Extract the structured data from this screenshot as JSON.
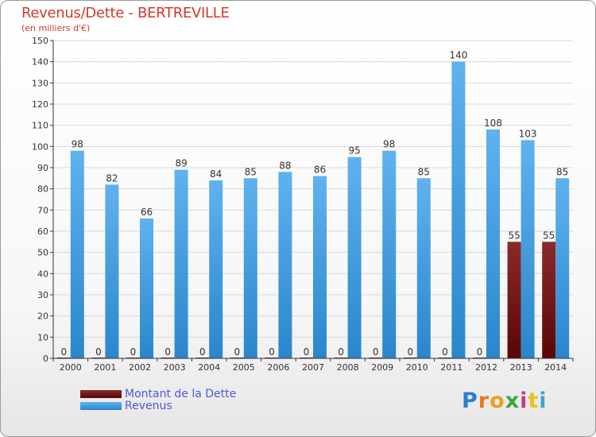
{
  "header": {
    "title": "Revenus/Dette - BERTREVILLE",
    "subtitle": "(en milliers d'€)"
  },
  "colors": {
    "dette": "#7a1010",
    "revenus": "#4aa3e6",
    "grid": "#d8d8d8",
    "title": "#d03a2c",
    "legend_text": "#4a5ad8"
  },
  "legend": {
    "dette_label": "Montant de la Dette",
    "revenus_label": "Revenus"
  },
  "logo": {
    "text": "Proxiti"
  },
  "chart_data": {
    "type": "bar",
    "title": "Revenus/Dette - BERTREVILLE",
    "subtitle": "(en milliers d'€)",
    "categories": [
      "2000",
      "2001",
      "2002",
      "2003",
      "2004",
      "2005",
      "2006",
      "2007",
      "2008",
      "2009",
      "2010",
      "2011",
      "2012",
      "2013",
      "2014"
    ],
    "series": [
      {
        "name": "Montant de la Dette",
        "values": [
          0,
          0,
          0,
          0,
          0,
          0,
          0,
          0,
          0,
          0,
          0,
          0,
          0,
          55,
          55
        ]
      },
      {
        "name": "Revenus",
        "values": [
          98,
          82,
          66,
          89,
          84,
          85,
          88,
          86,
          95,
          98,
          85,
          140,
          108,
          103,
          85
        ]
      }
    ],
    "ylim": [
      0,
      150
    ],
    "yticks": [
      0,
      10,
      20,
      30,
      40,
      50,
      60,
      70,
      80,
      90,
      100,
      110,
      120,
      130,
      140,
      150
    ],
    "grid": true,
    "legend_position": "bottom-left"
  }
}
